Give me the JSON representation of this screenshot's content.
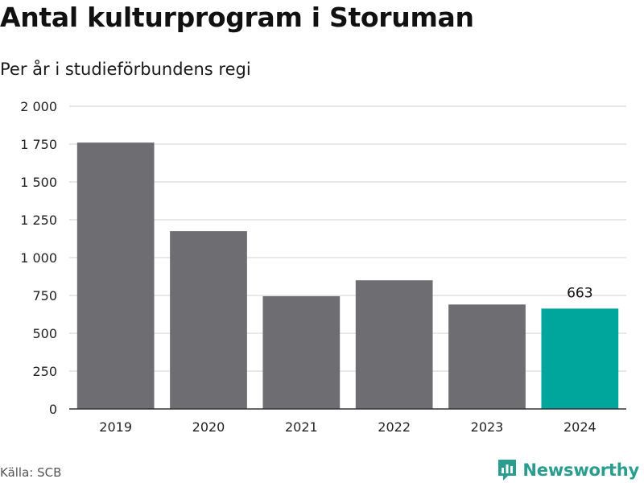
{
  "title": "Antal kulturprogram i Storuman",
  "subtitle": "Per år i studieförbundens regi",
  "source": "Källa: SCB",
  "brand": "Newsworthy",
  "colors": {
    "bar": "#6e6d72",
    "highlight": "#00a59b",
    "grid": "#d9d9d9",
    "axis": "#333333"
  },
  "chart_data": {
    "type": "bar",
    "categories": [
      "2019",
      "2020",
      "2021",
      "2022",
      "2023",
      "2024"
    ],
    "values": [
      1760,
      1175,
      745,
      850,
      690,
      663
    ],
    "highlight_index": 5,
    "data_labels": [
      {
        "index": 5,
        "text": "663"
      }
    ],
    "ylim": [
      0,
      2000
    ],
    "yticks": [
      0,
      250,
      500,
      750,
      1000,
      1250,
      1500,
      1750,
      2000
    ],
    "ytick_labels": [
      "0",
      "250",
      "500",
      "750",
      "1 000",
      "1 250",
      "1 500",
      "1 750",
      "2 000"
    ],
    "grid": true,
    "legend": false
  }
}
